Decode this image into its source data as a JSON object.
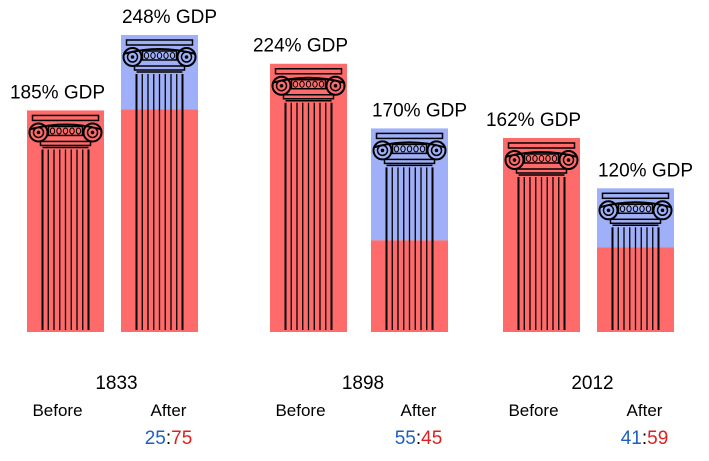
{
  "chart_data": {
    "type": "bar",
    "categories": [
      "1833",
      "1898",
      "2012"
    ],
    "value_unit": "% GDP",
    "colors": {
      "part_a": "#9fb0f8",
      "part_b": "#ff6b6b",
      "ratio_a": "#1f5fbf",
      "ratio_b": "#e02020"
    },
    "groups": [
      {
        "year": "1833",
        "before": {
          "label": "Before",
          "value": 185,
          "value_label": "185% GDP",
          "fraction_b": 1.0
        },
        "after": {
          "label": "After",
          "value": 248,
          "value_label": "248% GDP",
          "fraction_b": 0.75
        },
        "ratio": {
          "a": "25",
          "sep": ":",
          "b": "75"
        }
      },
      {
        "year": "1898",
        "before": {
          "label": "Before",
          "value": 224,
          "value_label": "224% GDP",
          "fraction_b": 1.0
        },
        "after": {
          "label": "After",
          "value": 170,
          "value_label": "170% GDP",
          "fraction_b": 0.45
        },
        "ratio": {
          "a": "55",
          "sep": ":",
          "b": "45"
        }
      },
      {
        "year": "2012",
        "before": {
          "label": "Before",
          "value": 162,
          "value_label": "162% GDP",
          "fraction_b": 1.0
        },
        "after": {
          "label": "After",
          "value": 120,
          "value_label": "120% GDP",
          "fraction_b": 0.59
        },
        "ratio": {
          "a": "41",
          "sep": ":",
          "b": "59"
        }
      }
    ],
    "ylim": [
      0,
      248
    ],
    "grid": false,
    "legend": "none"
  }
}
